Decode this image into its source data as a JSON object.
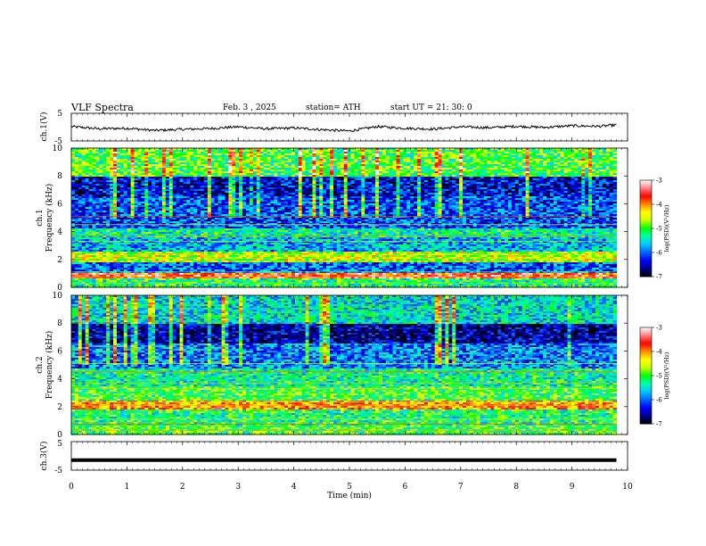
{
  "header": {
    "title": "VLF  Spectra",
    "date": "Feb. 3  , 2025",
    "station": "station= ATH",
    "start": "start  UT  =    21: 30: 0"
  },
  "colors": {
    "colormap": [
      "#000000",
      "#00008b",
      "#0000ff",
      "#0064ff",
      "#00c8ff",
      "#00ffaa",
      "#00ff00",
      "#c8ff00",
      "#ffff00",
      "#ff8c00",
      "#ff0000",
      "#ff8080",
      "#ffffff"
    ],
    "trace": "#000000",
    "axis": "#000000"
  },
  "chart_data": [
    {
      "type": "line",
      "name": "ch1-voltage",
      "ylabel": "ch.1(V)",
      "ylim": [
        -5,
        5
      ],
      "yticks": [
        "5",
        "-5"
      ],
      "x": [
        0,
        0.5,
        1,
        1.5,
        2,
        2.5,
        3,
        3.5,
        4,
        4.5,
        5,
        5.5,
        6,
        6.5,
        7,
        7.5,
        8,
        8.5,
        9,
        9.5,
        9.8
      ],
      "values": [
        0.2,
        -0.6,
        -0.4,
        -1.2,
        -0.8,
        -0.5,
        0.1,
        -0.6,
        -0.3,
        -0.9,
        -1.4,
        0.2,
        -0.4,
        -0.7,
        0.1,
        -0.2,
        0.3,
        -0.1,
        0.5,
        0.3,
        0.8
      ]
    },
    {
      "type": "heatmap",
      "name": "ch1-spectrogram",
      "ylabel": "ch.1\nFrequency (kHz)",
      "ylim": [
        0,
        10
      ],
      "yticks": [
        "0",
        "2",
        "4",
        "6",
        "8",
        "10"
      ],
      "colorbar": {
        "label": "log(PSD)(V²/Hz)",
        "range": [
          -7,
          -3
        ],
        "ticks": [
          "-3",
          "-4",
          "-5",
          "-6",
          "-7"
        ]
      },
      "bands_khz": [
        {
          "f0": 0.0,
          "f1": 0.6,
          "level": -5.2
        },
        {
          "f0": 0.6,
          "f1": 1.0,
          "level": -3.6
        },
        {
          "f0": 1.0,
          "f1": 1.8,
          "level": -6.0
        },
        {
          "f0": 1.8,
          "f1": 2.6,
          "level": -4.6
        },
        {
          "f0": 2.6,
          "f1": 3.6,
          "level": -5.7
        },
        {
          "f0": 3.6,
          "f1": 4.2,
          "level": -5.3
        },
        {
          "f0": 4.2,
          "f1": 6.5,
          "level": -6.1
        },
        {
          "f0": 6.5,
          "f1": 8.0,
          "level": -6.4
        },
        {
          "f0": 8.0,
          "f1": 10.0,
          "level": -5.0
        }
      ]
    },
    {
      "type": "heatmap",
      "name": "ch2-spectrogram",
      "ylabel": "ch.2\nFrequency (kHz)",
      "ylim": [
        0,
        10
      ],
      "yticks": [
        "0",
        "2",
        "4",
        "6",
        "8",
        "10"
      ],
      "colorbar": {
        "label": "log(PSD)(V²/Hz)",
        "range": [
          -7,
          -3
        ],
        "ticks": [
          "-3",
          "-4",
          "-5",
          "-6",
          "-7"
        ]
      },
      "bands_khz": [
        {
          "f0": 0.0,
          "f1": 0.6,
          "level": -5.0
        },
        {
          "f0": 0.6,
          "f1": 1.8,
          "level": -5.2
        },
        {
          "f0": 1.8,
          "f1": 2.4,
          "level": -4.0
        },
        {
          "f0": 2.4,
          "f1": 3.4,
          "level": -5.0
        },
        {
          "f0": 3.4,
          "f1": 4.8,
          "level": -5.3
        },
        {
          "f0": 4.8,
          "f1": 6.5,
          "level": -5.9
        },
        {
          "f0": 6.5,
          "f1": 8.0,
          "level": -6.6
        },
        {
          "f0": 8.0,
          "f1": 10.0,
          "level": -5.5
        }
      ]
    },
    {
      "type": "line",
      "name": "ch3-voltage",
      "ylabel": "ch.3(V)",
      "ylim": [
        -5,
        5
      ],
      "yticks": [
        "5",
        "-5"
      ],
      "x": [
        0,
        9.8
      ],
      "values": [
        -1.5,
        -1.5
      ]
    }
  ],
  "xaxis": {
    "label": "Time  (min)",
    "range": [
      0,
      10
    ],
    "ticks": [
      "0",
      "1",
      "2",
      "3",
      "4",
      "5",
      "6",
      "7",
      "8",
      "9",
      "10"
    ],
    "data_end_min": 9.8
  }
}
